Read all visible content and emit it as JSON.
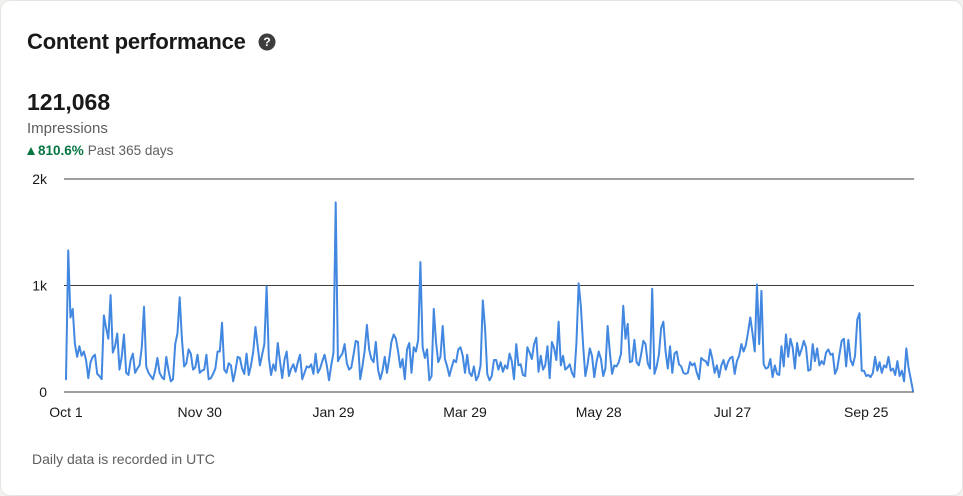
{
  "header": {
    "title": "Content performance",
    "help_icon": "help-circle-icon"
  },
  "metric": {
    "value": "121,068",
    "label": "Impressions",
    "change": "810.6%",
    "change_direction": "up",
    "change_icon": "triangle-up-icon",
    "period": "Past 365 days"
  },
  "footnote": "Daily data is recorded in UTC",
  "colors": {
    "line": "#4287e0",
    "positive": "#057642",
    "gridline": "#3d3d3d",
    "text": "#191919",
    "muted": "#5e5e5e"
  },
  "chart_data": {
    "type": "line",
    "title": "",
    "xlabel": "",
    "ylabel": "",
    "ylim": [
      0,
      2000
    ],
    "yticks": [
      0,
      1000,
      2000
    ],
    "ytick_labels": [
      "0",
      "1k",
      "2k"
    ],
    "x_tick_labels": [
      "Oct 1",
      "Nov 30",
      "Jan 29",
      "Mar 29",
      "May 28",
      "Jul 27",
      "Sep 25"
    ],
    "x_tick_positions": [
      0,
      60,
      120,
      179,
      239,
      299,
      359
    ],
    "grid": true,
    "legend": "none",
    "series": [
      {
        "values": [
          120,
          1330,
          700,
          780,
          450,
          330,
          430,
          340,
          380,
          300,
          130,
          280,
          330,
          350,
          170,
          150,
          120,
          720,
          600,
          500,
          910,
          370,
          430,
          550,
          210,
          330,
          540,
          180,
          160,
          300,
          360,
          180,
          220,
          250,
          420,
          800,
          240,
          180,
          150,
          120,
          200,
          320,
          180,
          140,
          120,
          330,
          200,
          100,
          120,
          450,
          550,
          890,
          500,
          240,
          270,
          400,
          360,
          210,
          230,
          350,
          180,
          200,
          210,
          350,
          120,
          130,
          170,
          220,
          380,
          380,
          650,
          210,
          180,
          270,
          250,
          100,
          200,
          330,
          320,
          220,
          170,
          360,
          160,
          250,
          380,
          610,
          430,
          250,
          350,
          450,
          990,
          320,
          160,
          260,
          200,
          460,
          290,
          130,
          300,
          380,
          150,
          220,
          260,
          190,
          280,
          350,
          120,
          180,
          240,
          230,
          260,
          170,
          360,
          180,
          220,
          290,
          350,
          250,
          110,
          250,
          370,
          1780,
          290,
          330,
          360,
          450,
          270,
          210,
          230,
          350,
          480,
          470,
          120,
          240,
          390,
          630,
          400,
          310,
          280,
          470,
          210,
          120,
          200,
          330,
          180,
          310,
          470,
          540,
          500,
          380,
          230,
          310,
          120,
          400,
          460,
          180,
          420,
          380,
          490,
          1220,
          420,
          320,
          400,
          110,
          150,
          780,
          470,
          280,
          330,
          620,
          310,
          240,
          150,
          230,
          300,
          280,
          400,
          420,
          340,
          180,
          350,
          180,
          150,
          240,
          110,
          150,
          250,
          860,
          600,
          170,
          110,
          150,
          300,
          300,
          210,
          280,
          190,
          250,
          220,
          360,
          290,
          120,
          450,
          250,
          260,
          160,
          150,
          420,
          370,
          310,
          450,
          510,
          190,
          340,
          210,
          250,
          430,
          130,
          470,
          410,
          300,
          660,
          250,
          340,
          210,
          230,
          260,
          180,
          140,
          460,
          1020,
          800,
          440,
          150,
          260,
          410,
          340,
          140,
          280,
          380,
          310,
          150,
          220,
          620,
          370,
          170,
          250,
          240,
          280,
          360,
          810,
          500,
          640,
          280,
          290,
          490,
          280,
          250,
          350,
          480,
          450,
          270,
          220,
          970,
          170,
          240,
          350,
          600,
          660,
          380,
          220,
          430,
          180,
          360,
          380,
          260,
          240,
          180,
          170,
          180,
          280,
          250,
          270,
          180,
          120,
          320,
          300,
          290,
          250,
          400,
          310,
          180,
          250,
          140,
          250,
          300,
          210,
          280,
          320,
          330,
          170,
          290,
          340,
          450,
          380,
          440,
          560,
          700,
          550,
          380,
          1010,
          450,
          950,
          260,
          220,
          230,
          310,
          140,
          250,
          170,
          160,
          430,
          240,
          540,
          330,
          500,
          420,
          220,
          460,
          340,
          400,
          480,
          420,
          200,
          210,
          450,
          290,
          410,
          250,
          290,
          260,
          370,
          400,
          350,
          360,
          170,
          220,
          350,
          480,
          500,
          240,
          490,
          300,
          250,
          340,
          680,
          740,
          200,
          200,
          150,
          160,
          140,
          180,
          330,
          200,
          280,
          180,
          250,
          230,
          330,
          200,
          220,
          160,
          290,
          150,
          200,
          100,
          410,
          230,
          120,
          10
        ]
      }
    ]
  }
}
